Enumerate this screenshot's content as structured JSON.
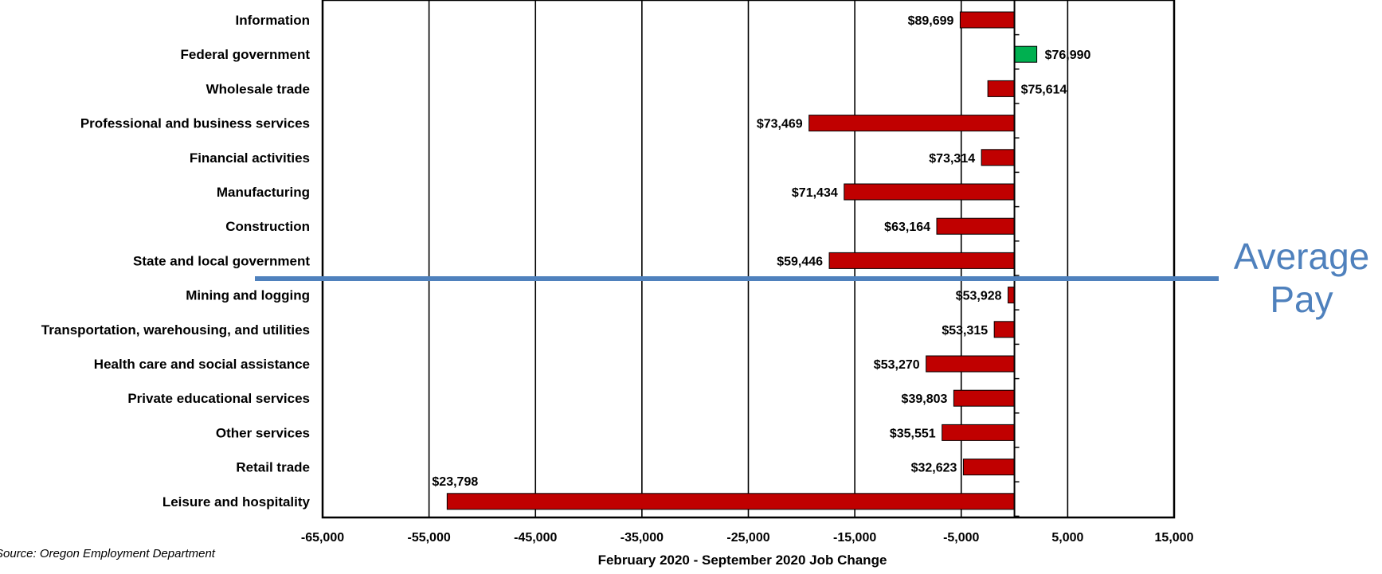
{
  "chart_data": {
    "type": "bar",
    "orientation": "horizontal",
    "title": "",
    "xlabel": "February 2020 - September 2020 Job Change",
    "ylabel": "",
    "xlim": [
      -65000,
      15000
    ],
    "x_ticks": [
      -65000,
      -55000,
      -45000,
      -35000,
      -25000,
      -15000,
      -5000,
      5000,
      15000
    ],
    "x_tick_labels": [
      "-65,000",
      "-55,000",
      "-45,000",
      "-35,000",
      "-25,000",
      "-15,000",
      "-5,000",
      "5,000",
      "15,000"
    ],
    "grid": "vertical lines",
    "categories": [
      "Information",
      "Federal government",
      "Wholesale trade",
      "Professional and business services",
      "Financial activities",
      "Manufacturing",
      "Construction",
      "State and local government",
      "Mining and logging",
      "Transportation, warehousing, and utilities",
      "Health care and social assistance",
      "Private educational services",
      "Other services",
      "Retail trade",
      "Leisure and hospitality"
    ],
    "values": [
      -5100,
      2100,
      -2500,
      -19300,
      -3100,
      -16000,
      -7300,
      -17400,
      -600,
      -1900,
      -8300,
      -5700,
      -6800,
      -4800,
      -53300
    ],
    "data_labels": [
      "$89,699",
      "$76,990",
      "$75,614",
      "$73,469",
      "$73,314",
      "$71,434",
      "$63,164",
      "$59,446",
      "$53,928",
      "$53,315",
      "$53,270",
      "$39,803",
      "$35,551",
      "$32,623",
      "$23,798"
    ],
    "colors": {
      "negative": "#c00000",
      "positive": "#00b050",
      "divider": "#4f81bd",
      "annotation": "#4f81bd"
    },
    "annotation": {
      "lines": [
        "Average",
        "Pay"
      ],
      "divider_after_category": "State and local government"
    },
    "source": "Source: Oregon Employment Department"
  }
}
